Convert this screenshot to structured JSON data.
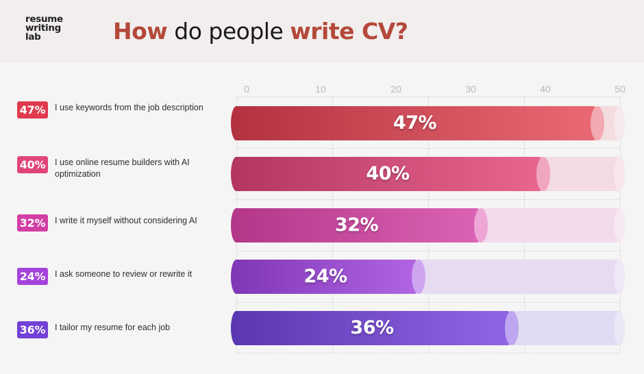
{
  "header": {
    "logo": [
      "resume",
      "writing",
      "lab"
    ],
    "title_parts": [
      {
        "text": "How",
        "style": "accent"
      },
      {
        "text": " do people ",
        "style": "plain"
      },
      {
        "text": "write CV?",
        "style": "accent"
      }
    ]
  },
  "colors": {
    "title_accent": "#b4493a",
    "header_bg": "#f1eeed",
    "page_bg": "#f4f5f4",
    "axis_tick": "#b7b7b7"
  },
  "legend": [
    {
      "badge": "47%",
      "text": "I use keywords from the job description",
      "color": "#e03a4e"
    },
    {
      "badge": "40%",
      "text": "I use online resume builders with AI optimization",
      "color": "#e0457a"
    },
    {
      "badge": "32%",
      "text": "I write it myself without considering AI",
      "color": "#d23ea4"
    },
    {
      "badge": "24%",
      "text": "I ask someone to review or rewrite it",
      "color": "#a442dc"
    },
    {
      "badge": "36%",
      "text": "I tailor my resume for each job",
      "color": "#7340d6"
    }
  ],
  "chart_data": {
    "type": "bar",
    "orientation": "horizontal",
    "title": "How do people write CV?",
    "xlabel": "",
    "ylabel": "",
    "xlim": [
      0,
      50
    ],
    "x_ticks": [
      0,
      10,
      20,
      30,
      40,
      50
    ],
    "grid": true,
    "legend_position": "left",
    "categories": [
      "I use keywords from the job description",
      "I use online resume builders with AI optimization",
      "I write it myself without considering AI",
      "I ask someone to review or rewrite it",
      "I tailor my resume for each job"
    ],
    "values": [
      47,
      40,
      32,
      24,
      36
    ],
    "labels": [
      "47%",
      "40%",
      "32%",
      "24%",
      "36%"
    ],
    "bar_colors": [
      {
        "start": "#b3323f",
        "end": "#e96a74",
        "cap": "#f3a9b0",
        "track": "#f3dde0"
      },
      {
        "start": "#b43660",
        "end": "#e8678f",
        "cap": "#f1a6c0",
        "track": "#f3dbe4"
      },
      {
        "start": "#b33689",
        "end": "#dc63b5",
        "cap": "#eda6d6",
        "track": "#f1dbea"
      },
      {
        "start": "#7f36b6",
        "end": "#b266e4",
        "cap": "#cea6f0",
        "track": "#e7dbf2"
      },
      {
        "start": "#5a36b2",
        "end": "#9166e6",
        "cap": "#bfa6f0",
        "track": "#e0dbf2"
      }
    ]
  }
}
